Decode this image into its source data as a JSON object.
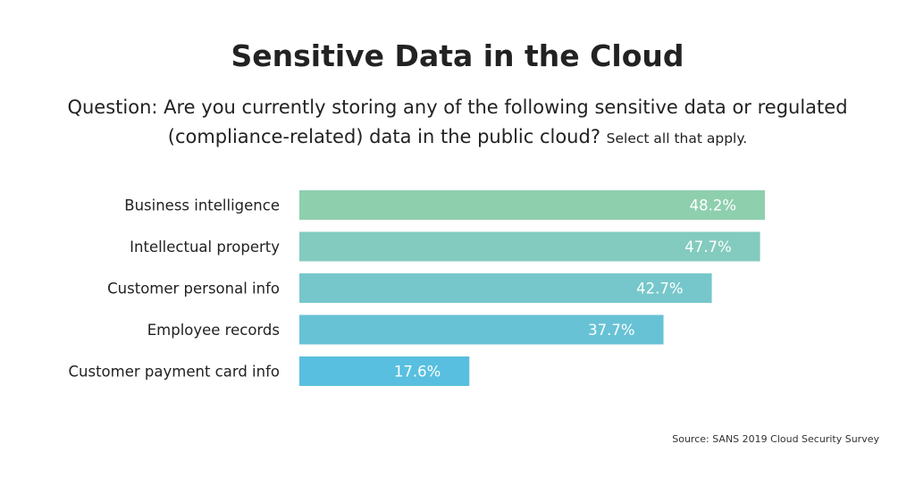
{
  "title": "Sensitive Data in the Cloud",
  "question": {
    "main": "Question: Are you currently storing any of the following sensitive data or regulated (compliance-related) data in the public cloud?",
    "instruction": "Select all that apply."
  },
  "source": "Source: SANS 2019 Cloud Security Survey",
  "chart_data": {
    "type": "bar",
    "orientation": "horizontal",
    "title": "Sensitive Data in the Cloud",
    "categories": [
      "Business intelligence",
      "Intellectual property",
      "Customer personal info",
      "Employee records",
      "Customer payment card info"
    ],
    "values": [
      48.2,
      47.7,
      42.7,
      37.7,
      17.6
    ],
    "value_labels": [
      "48.2%",
      "47.7%",
      "42.7%",
      "37.7%",
      "17.6%"
    ],
    "unit": "%",
    "xlim": [
      0,
      100
    ],
    "grid": false,
    "legend": "none",
    "colors": [
      "#8ecfae",
      "#83cbbe",
      "#76c7cb",
      "#67c2d6",
      "#58bfe0"
    ]
  }
}
